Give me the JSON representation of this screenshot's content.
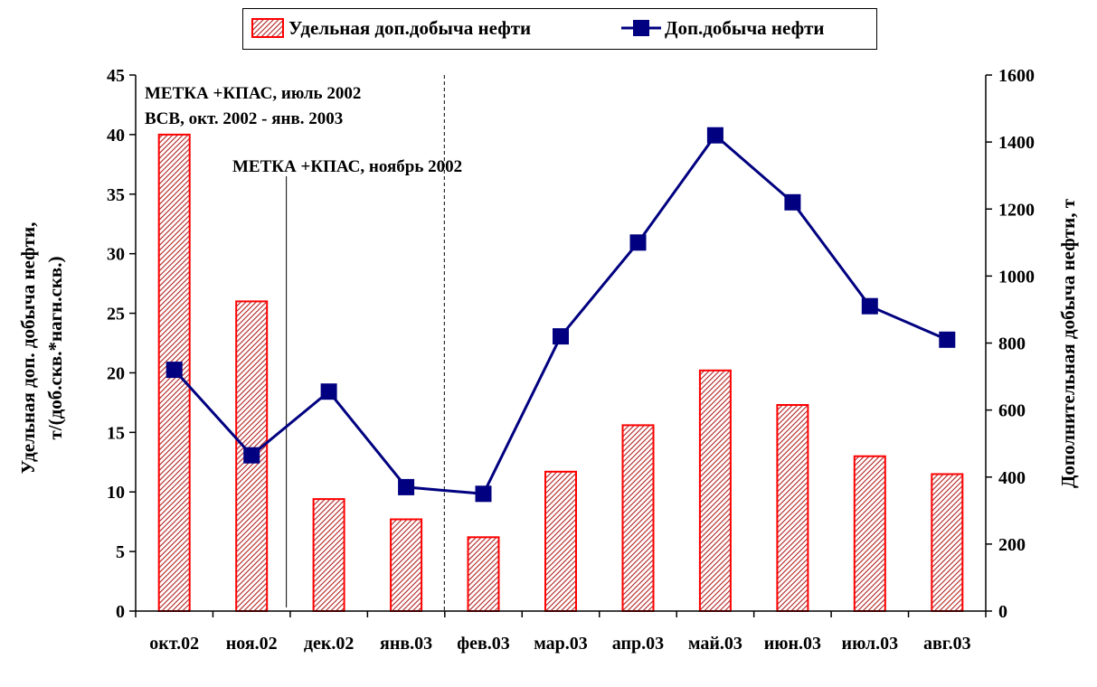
{
  "chart_data": {
    "type": "bar",
    "categories": [
      "окт.02",
      "ноя.02",
      "дек.02",
      "янв.03",
      "фев.03",
      "мар.03",
      "апр.03",
      "май.03",
      "июн.03",
      "июл.03",
      "авг.03"
    ],
    "series": [
      {
        "name": "Удельная доп.добыча нефти",
        "type": "bar",
        "axis": "left",
        "values": [
          40.0,
          26.0,
          9.4,
          7.7,
          6.2,
          11.7,
          15.6,
          20.2,
          17.3,
          13.0,
          11.5
        ],
        "color": "#ff0000"
      },
      {
        "name": "Доп.добыча нефти",
        "type": "line",
        "axis": "right",
        "values": [
          720,
          465,
          655,
          370,
          350,
          820,
          1100,
          1420,
          1220,
          910,
          810
        ],
        "color": "#000080"
      }
    ],
    "ylabel": "Удельная доп. добыча нефти, т/(доб.скв.*нагн.скв.)",
    "ylabel_lines": [
      "Удельная доп. добыча нефти,",
      "т/(доб.скв.*нагн.скв.)"
    ],
    "y2label": "Дополнительная добыча нефти, т",
    "ylim": [
      0,
      45
    ],
    "yticks": [
      "0",
      "5",
      "10",
      "15",
      "20",
      "25",
      "30",
      "35",
      "40",
      "45"
    ],
    "y2lim": [
      0,
      1600
    ],
    "y2ticks": [
      "0",
      "200",
      "400",
      "600",
      "800",
      "1000",
      "1200",
      "1400",
      "1600"
    ],
    "legend_position": "top",
    "annotations": {
      "line1": "МЕТКА +КПАС, июль 2002",
      "line2": "ВСВ, окт. 2002 - янв. 2003",
      "line3": "МЕТКА +КПАС, ноябрь 2002"
    },
    "grid": false
  }
}
